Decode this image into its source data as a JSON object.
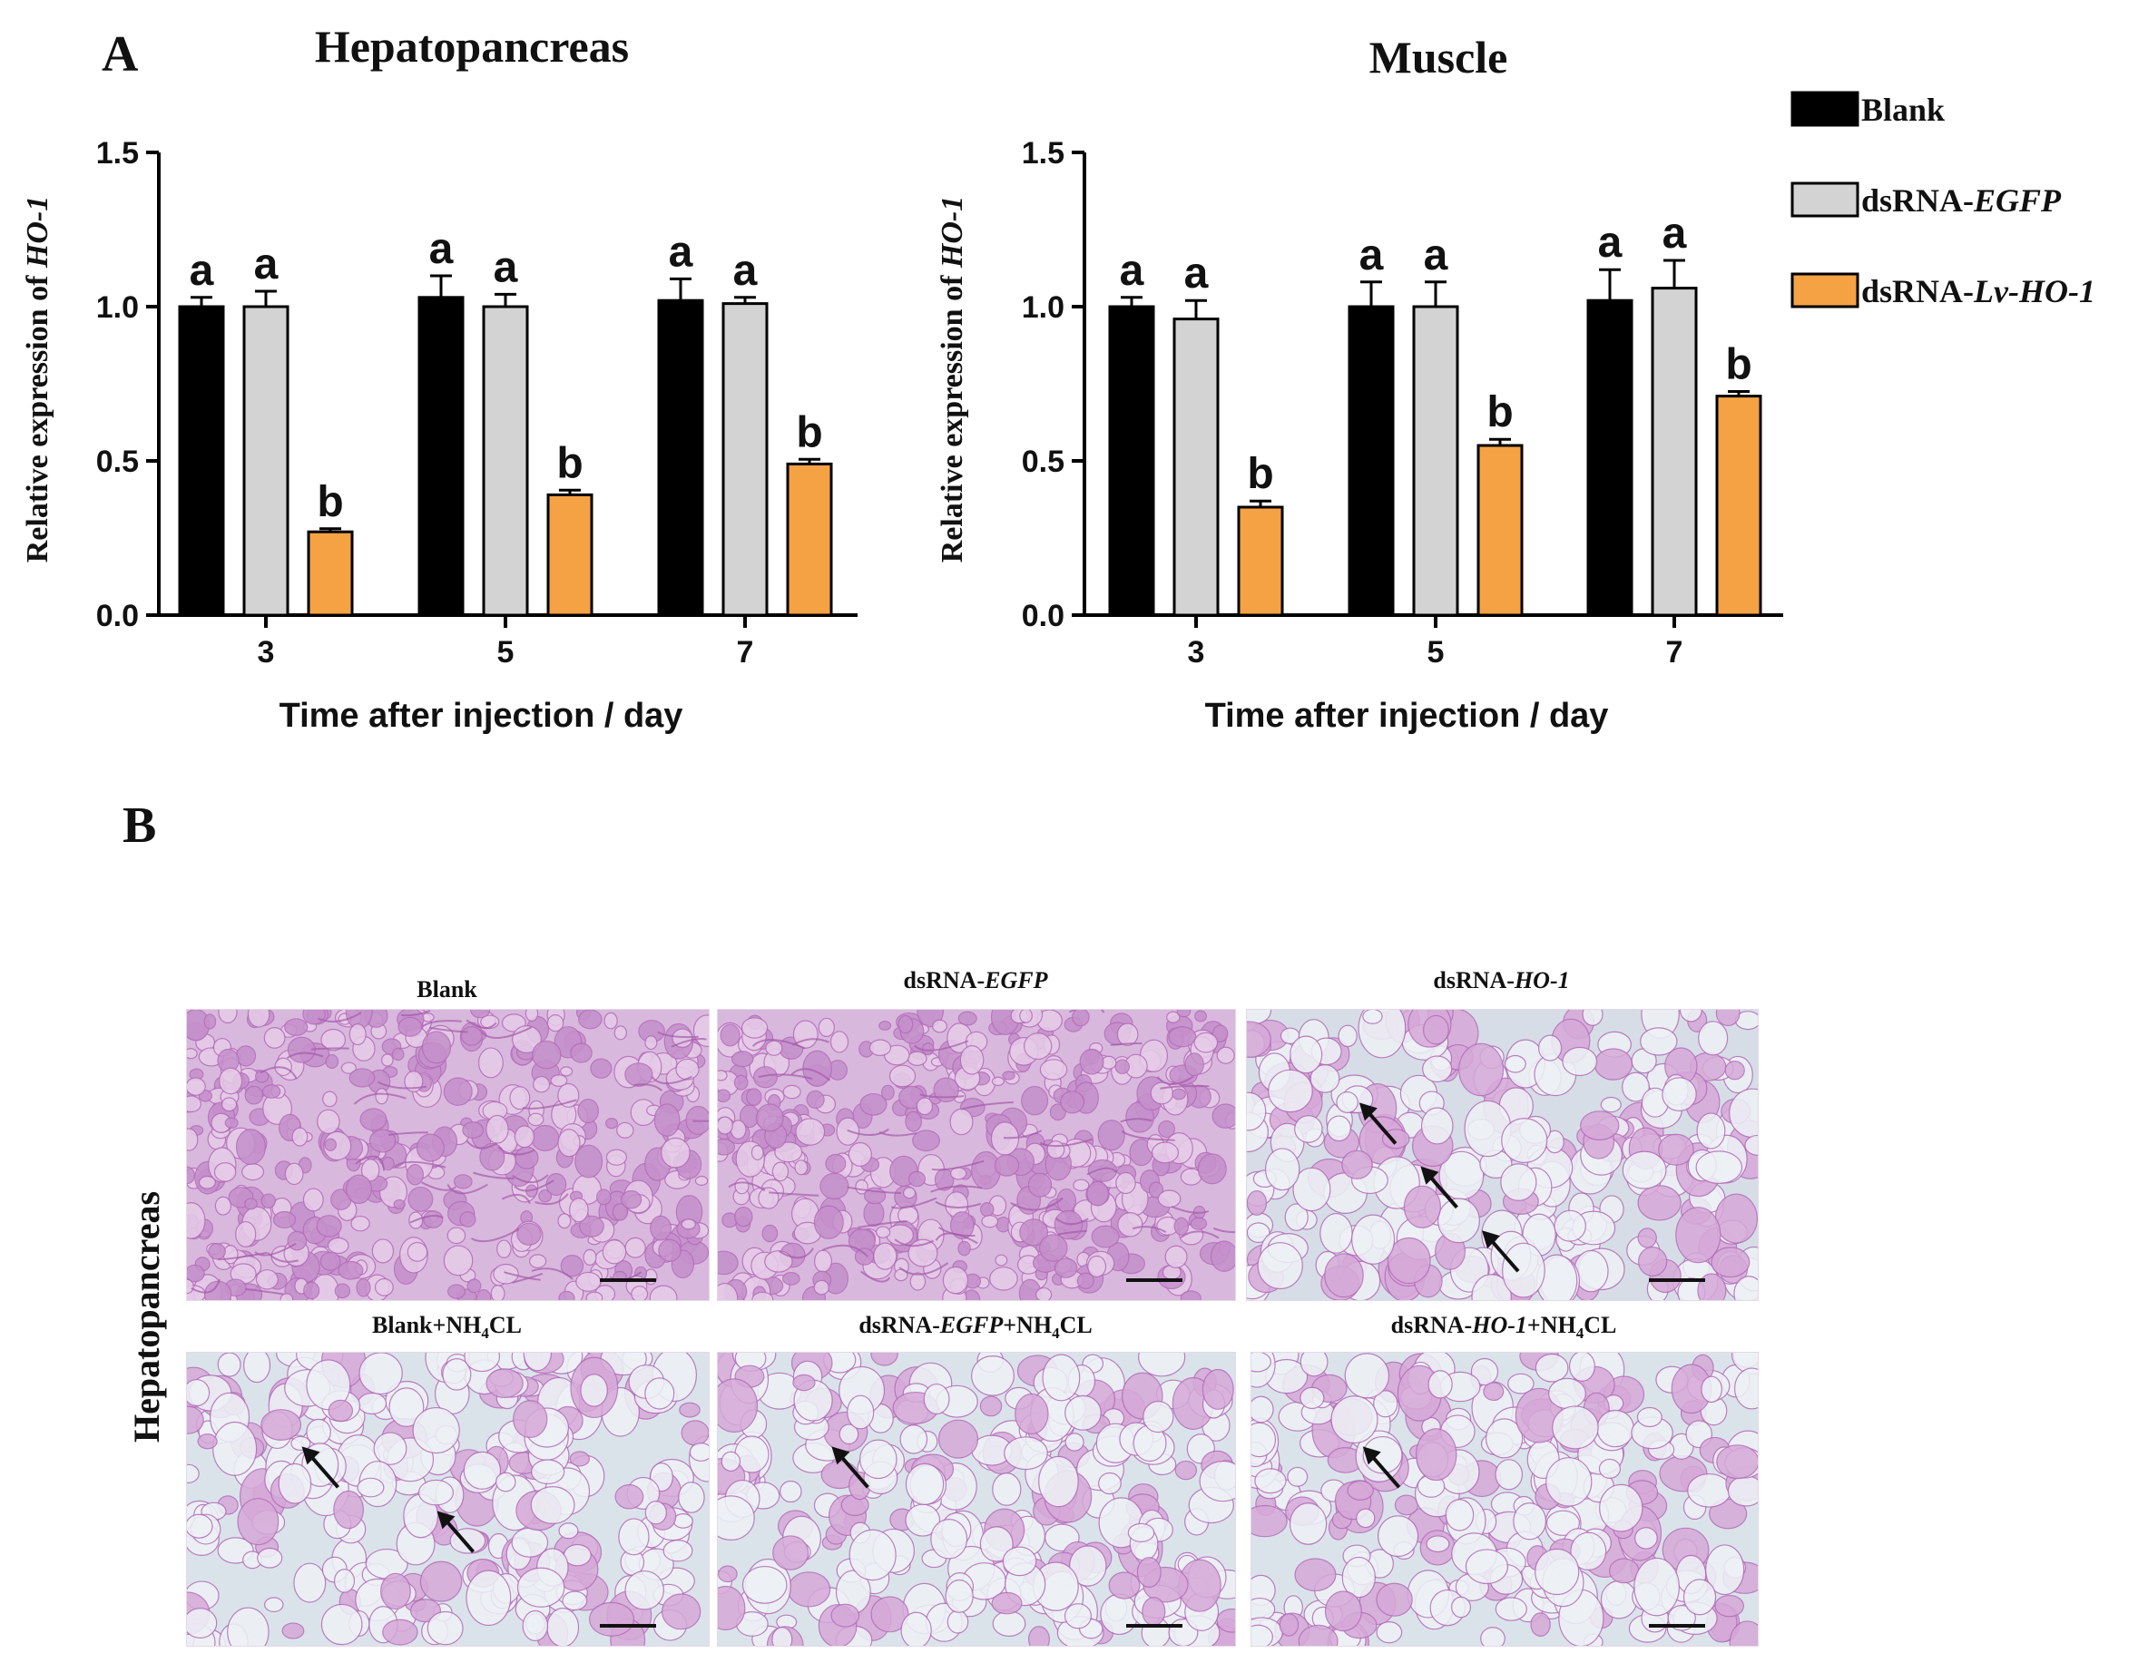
{
  "panels": {
    "A_label": "A",
    "B_label": "B"
  },
  "legend": [
    {
      "name": "Blank",
      "prefix": "Blank",
      "italic": "",
      "color": "#000000"
    },
    {
      "name": "dsRNA-EGFP",
      "prefix": "dsRNA-",
      "italic": "EGFP",
      "color": "#d3d3d3"
    },
    {
      "name": "dsRNA-Lv-HO-1",
      "prefix": "dsRNA-",
      "italic": "Lv-HO-1",
      "color": "#f5a244"
    }
  ],
  "chart_data": [
    {
      "type": "bar",
      "title": "Hepatopancreas",
      "xlabel": "Time after injection / day",
      "ylabel_prefix": "Relative expression of ",
      "ylabel_italic": "HO-1",
      "categories": [
        "3",
        "5",
        "7"
      ],
      "ylim": [
        0,
        1.5
      ],
      "yticks": [
        "0.0",
        "0.5",
        "1.0",
        "1.5"
      ],
      "series": [
        {
          "name": "Blank",
          "values": [
            1.0,
            1.03,
            1.02
          ],
          "errors": [
            0.03,
            0.07,
            0.07
          ],
          "labels": [
            "a",
            "a",
            "a"
          ]
        },
        {
          "name": "dsRNA-EGFP",
          "values": [
            1.0,
            1.0,
            1.01
          ],
          "errors": [
            0.05,
            0.04,
            0.02
          ],
          "labels": [
            "a",
            "a",
            "a"
          ]
        },
        {
          "name": "dsRNA-Lv-HO-1",
          "values": [
            0.27,
            0.39,
            0.49
          ],
          "errors": [
            0.01,
            0.015,
            0.015
          ],
          "labels": [
            "b",
            "b",
            "b"
          ]
        }
      ]
    },
    {
      "type": "bar",
      "title": "Muscle",
      "xlabel": "Time after injection / day",
      "ylabel_prefix": "Relative expression of ",
      "ylabel_italic": "HO-1",
      "categories": [
        "3",
        "5",
        "7"
      ],
      "ylim": [
        0,
        1.5
      ],
      "yticks": [
        "0.0",
        "0.5",
        "1.0",
        "1.5"
      ],
      "series": [
        {
          "name": "Blank",
          "values": [
            1.0,
            1.0,
            1.02
          ],
          "errors": [
            0.03,
            0.08,
            0.1
          ],
          "labels": [
            "a",
            "a",
            "a"
          ]
        },
        {
          "name": "dsRNA-EGFP",
          "values": [
            0.96,
            1.0,
            1.06
          ],
          "errors": [
            0.06,
            0.08,
            0.09
          ],
          "labels": [
            "a",
            "a",
            "a"
          ]
        },
        {
          "name": "dsRNA-Lv-HO-1",
          "values": [
            0.35,
            0.55,
            0.71
          ],
          "errors": [
            0.02,
            0.02,
            0.015
          ],
          "labels": [
            "b",
            "b",
            "b"
          ]
        }
      ]
    }
  ],
  "histology": {
    "tissue_label": "Hepatopancreas",
    "images": [
      {
        "title_prefix": "Blank",
        "title_italic": "",
        "title_suffix": "",
        "tone": "normal",
        "arrows": 0
      },
      {
        "title_prefix": "dsRNA-",
        "title_italic": "EGFP",
        "title_suffix": "",
        "tone": "normal",
        "arrows": 0
      },
      {
        "title_prefix": "dsRNA-",
        "title_italic": "HO-1",
        "title_suffix": "",
        "tone": "vacuole",
        "arrows": 3
      },
      {
        "title_prefix": "Blank+NH",
        "title_italic": "",
        "title_suffix": "CL",
        "sub": "4",
        "tone": "mixed",
        "arrows": 2
      },
      {
        "title_prefix": "dsRNA-",
        "title_italic": "EGFP",
        "title_suffix": "CL",
        "mid": "+NH",
        "sub": "4",
        "tone": "cells",
        "arrows": 1
      },
      {
        "title_prefix": "dsRNA-",
        "title_italic": "HO-1",
        "title_suffix": "CL",
        "mid": "+NH",
        "sub": "4",
        "tone": "cells",
        "arrows": 1
      }
    ]
  }
}
